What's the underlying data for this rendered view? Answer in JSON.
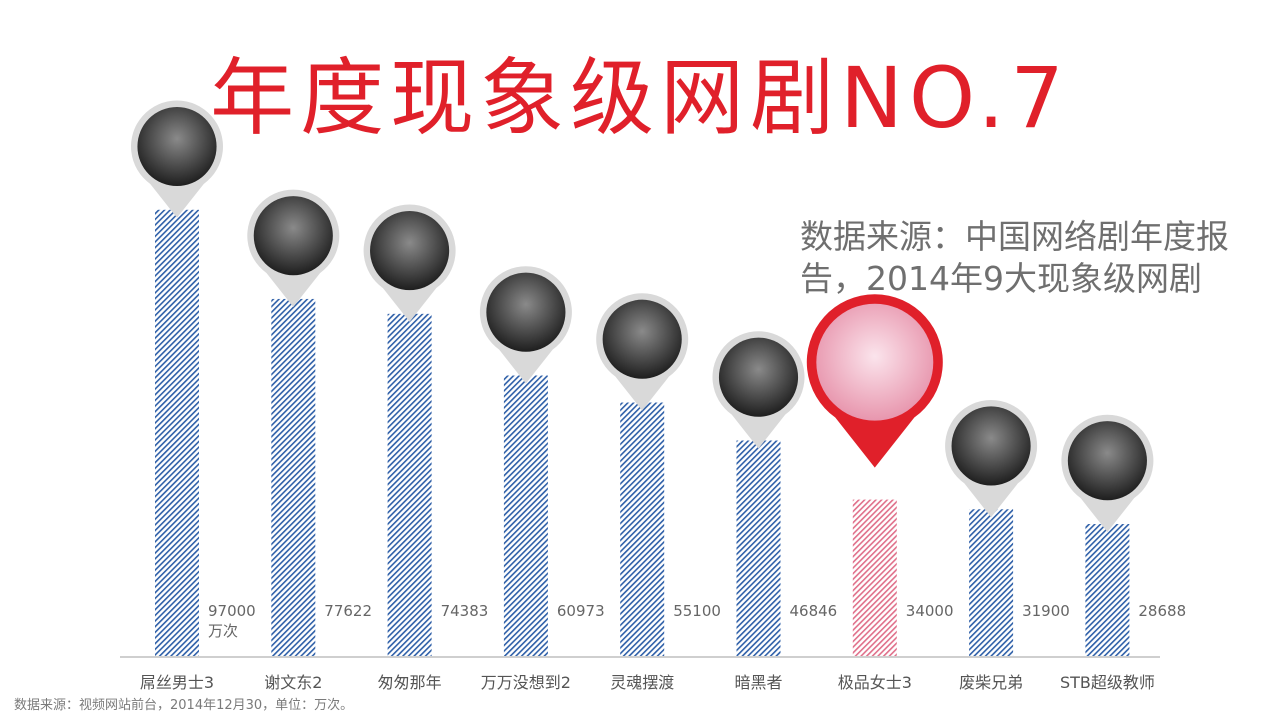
{
  "page": {
    "title": "年度现象级网剧NO.7",
    "source_note": "数据来源：中国网络剧年度报告，2014年9大现象级网剧",
    "footnote": "数据来源：视频网站前台，2014年12月30，单位：万次。",
    "accent_color": "#e0202a"
  },
  "chart_data": {
    "type": "bar",
    "categories": [
      "屌丝男士3",
      "谢文东2",
      "匆匆那年",
      "万万没想到2",
      "灵魂摆渡",
      "暗黑者",
      "极品女士3",
      "废柴兄弟",
      "STB超级教师"
    ],
    "values": [
      97000,
      77622,
      74383,
      60973,
      55100,
      46846,
      34000,
      31900,
      28688
    ],
    "value_labels": [
      "97000",
      "77622",
      "74383",
      "60973",
      "55100",
      "46846",
      "34000",
      "31900",
      "28688"
    ],
    "first_value_unit": "万次",
    "highlight_index": 6,
    "ylim": [
      0,
      100000
    ],
    "bar_color": "#2e5fa8",
    "highlight_color": "#e0202a",
    "axes_visible": false,
    "grid": false,
    "markers": [
      "poster-pin",
      "poster-pin",
      "poster-pin",
      "poster-pin",
      "poster-pin",
      "poster-pin",
      "poster-pin-highlight",
      "poster-pin",
      "poster-pin"
    ]
  }
}
